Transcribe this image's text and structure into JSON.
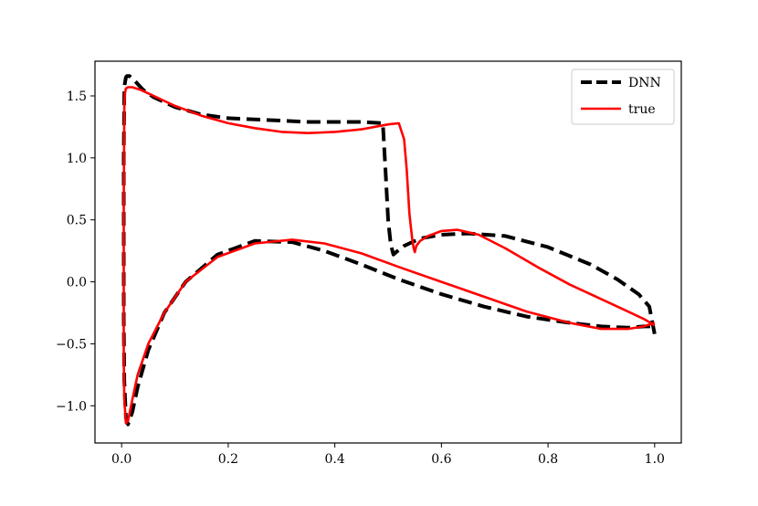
{
  "chart_data": {
    "type": "line",
    "title": "",
    "xlabel": "",
    "ylabel": "",
    "xlim": [
      -0.05,
      1.05
    ],
    "ylim": [
      -1.3,
      1.78
    ],
    "xticks": [
      0.0,
      0.2,
      0.4,
      0.6,
      0.8,
      1.0
    ],
    "xtick_labels": [
      "0.0",
      "0.2",
      "0.4",
      "0.6",
      "0.8",
      "1.0"
    ],
    "yticks": [
      -1.0,
      -0.5,
      0.0,
      0.5,
      1.0,
      1.5
    ],
    "ytick_labels": [
      "−1.0",
      "−0.5",
      "0.0",
      "0.5",
      "1.0",
      "1.5"
    ],
    "grid": false,
    "legend_placement": "top-right",
    "series": [
      {
        "name": "DNN",
        "color": "#000000",
        "style": "dashed",
        "x": [
          1.0,
          0.99,
          0.97,
          0.93,
          0.88,
          0.8,
          0.72,
          0.65,
          0.6,
          0.56,
          0.53,
          0.515,
          0.51,
          0.505,
          0.5,
          0.495,
          0.49,
          0.45,
          0.4,
          0.35,
          0.3,
          0.25,
          0.2,
          0.15,
          0.1,
          0.06,
          0.04,
          0.025,
          0.015,
          0.01,
          0.008,
          0.006,
          0.005,
          0.004,
          0.004,
          0.005,
          0.008,
          0.012,
          0.02,
          0.03,
          0.05,
          0.08,
          0.12,
          0.18,
          0.25,
          0.32,
          0.38,
          0.45,
          0.52,
          0.6,
          0.68,
          0.76,
          0.84,
          0.9,
          0.95,
          0.98,
          1.0
        ],
        "y": [
          -0.42,
          -0.2,
          -0.1,
          0.02,
          0.14,
          0.28,
          0.37,
          0.39,
          0.38,
          0.35,
          0.29,
          0.24,
          0.22,
          0.3,
          0.5,
          0.9,
          1.28,
          1.29,
          1.29,
          1.29,
          1.3,
          1.31,
          1.32,
          1.35,
          1.41,
          1.49,
          1.55,
          1.62,
          1.66,
          1.66,
          1.65,
          1.6,
          1.52,
          1.0,
          -0.3,
          -0.8,
          -1.1,
          -1.15,
          -1.05,
          -0.85,
          -0.55,
          -0.25,
          0.0,
          0.22,
          0.33,
          0.32,
          0.25,
          0.14,
          0.02,
          -0.1,
          -0.2,
          -0.28,
          -0.33,
          -0.36,
          -0.37,
          -0.36,
          -0.36
        ]
      },
      {
        "name": "true",
        "color": "#ff0000",
        "style": "solid",
        "x": [
          1.0,
          0.98,
          0.95,
          0.9,
          0.84,
          0.78,
          0.72,
          0.67,
          0.63,
          0.6,
          0.575,
          0.56,
          0.553,
          0.55,
          0.548,
          0.545,
          0.54,
          0.535,
          0.53,
          0.52,
          0.5,
          0.45,
          0.4,
          0.35,
          0.3,
          0.25,
          0.2,
          0.15,
          0.1,
          0.06,
          0.035,
          0.02,
          0.012,
          0.008,
          0.006,
          0.005,
          0.004,
          0.004,
          0.005,
          0.008,
          0.012,
          0.02,
          0.03,
          0.05,
          0.08,
          0.12,
          0.18,
          0.25,
          0.32,
          0.38,
          0.45,
          0.52,
          0.6,
          0.68,
          0.76,
          0.84,
          0.9,
          0.95,
          0.98,
          1.0
        ],
        "y": [
          -0.35,
          -0.3,
          -0.24,
          -0.14,
          -0.02,
          0.12,
          0.27,
          0.38,
          0.42,
          0.41,
          0.37,
          0.33,
          0.29,
          0.24,
          0.27,
          0.35,
          0.55,
          0.9,
          1.15,
          1.28,
          1.27,
          1.23,
          1.21,
          1.2,
          1.21,
          1.24,
          1.28,
          1.34,
          1.42,
          1.5,
          1.55,
          1.57,
          1.57,
          1.56,
          1.52,
          1.4,
          0.6,
          -0.6,
          -0.95,
          -1.14,
          -1.12,
          -0.95,
          -0.75,
          -0.5,
          -0.25,
          0.0,
          0.2,
          0.31,
          0.34,
          0.31,
          0.23,
          0.12,
          0.0,
          -0.12,
          -0.24,
          -0.33,
          -0.38,
          -0.38,
          -0.36,
          -0.33
        ]
      }
    ]
  }
}
